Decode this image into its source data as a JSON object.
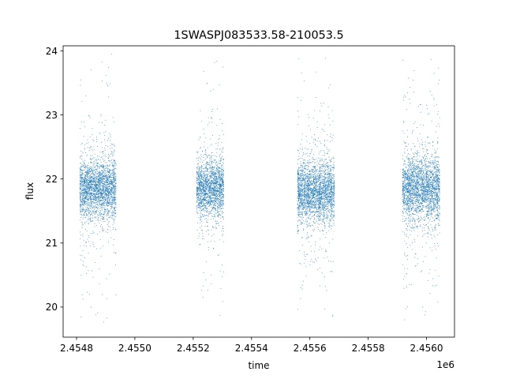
{
  "chart_data": {
    "type": "scatter",
    "title": "1SWASPJ083533.58-210053.5",
    "xlabel": "time",
    "ylabel": "flux",
    "x_offset_label": "1e6",
    "xlim": [
      2454754,
      2456096
    ],
    "ylim": [
      19.53,
      24.08
    ],
    "x_ticks": [
      2454800,
      2455000,
      2455200,
      2455400,
      2455600,
      2455800,
      2456000
    ],
    "x_tick_labels": [
      "2.4548",
      "2.4550",
      "2.4552",
      "2.4554",
      "2.4556",
      "2.4558",
      "2.4560"
    ],
    "y_ticks": [
      20,
      21,
      22,
      23,
      24
    ],
    "y_tick_labels": [
      "20",
      "21",
      "22",
      "23",
      "24"
    ],
    "grid": false,
    "legend": "none",
    "marker_color": "#1f77b4",
    "series": [
      {
        "clusters": [
          {
            "x_range": [
              2454812,
              2454937
            ],
            "y_center": 21.85,
            "y_spread": 0.22,
            "y_min": 19.7,
            "y_max": 23.95,
            "points": 2600
          },
          {
            "x_range": [
              2455212,
              2455306
            ],
            "y_center": 21.85,
            "y_spread": 0.22,
            "y_min": 19.85,
            "y_max": 23.85,
            "points": 1900
          },
          {
            "x_range": [
              2455558,
              2455685
            ],
            "y_center": 21.8,
            "y_spread": 0.24,
            "y_min": 19.82,
            "y_max": 23.95,
            "points": 2600
          },
          {
            "x_range": [
              2455918,
              2456047
            ],
            "y_center": 21.85,
            "y_spread": 0.26,
            "y_min": 19.75,
            "y_max": 23.9,
            "points": 2600
          }
        ]
      }
    ]
  }
}
